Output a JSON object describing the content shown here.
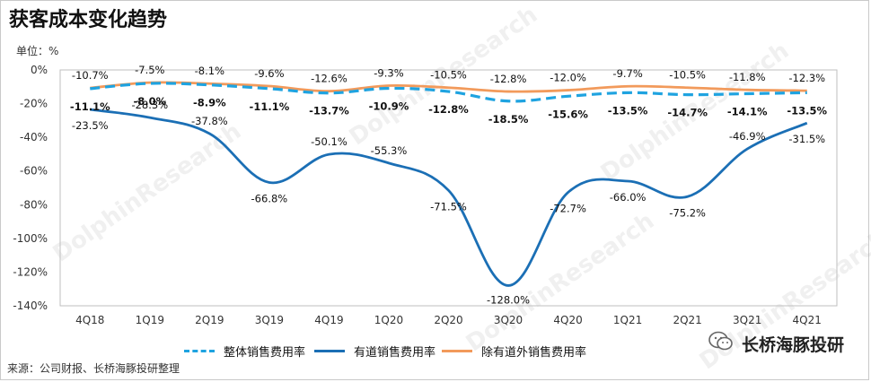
{
  "page": {
    "title": "获客成本变化趋势",
    "unit": "单位：%",
    "source": "来源：公司财报、长桥海豚投研整理",
    "brand": "长桥海豚投研",
    "watermark": "DolphinResearch"
  },
  "chart_data": {
    "type": "line",
    "title": "获客成本变化趋势",
    "xlabel": "",
    "ylabel": "单位：%",
    "categories": [
      "4Q18",
      "1Q19",
      "2Q19",
      "3Q19",
      "4Q19",
      "1Q20",
      "2Q20",
      "3Q20",
      "4Q20",
      "1Q21",
      "2Q21",
      "3Q21",
      "4Q21"
    ],
    "ylim": [
      -140,
      0
    ],
    "yticks": [
      0,
      -20,
      -40,
      -60,
      -80,
      -100,
      -120,
      -140
    ],
    "ytick_labels": [
      "0%",
      "-20%",
      "-40%",
      "-60%",
      "-80%",
      "-100%",
      "-120%",
      "-140%"
    ],
    "grid": false,
    "legend_position": "bottom",
    "series": [
      {
        "name": "整体销售费用率",
        "style": "dashed",
        "color": "#1fa3e0",
        "values": [
          -11.1,
          -8.0,
          -8.9,
          -11.1,
          -13.7,
          -10.9,
          -12.8,
          -18.5,
          -15.6,
          -13.5,
          -14.7,
          -14.1,
          -13.5
        ],
        "labels": [
          "-11.1%",
          "-8.0%",
          "-8.9%",
          "-11.1%",
          "-13.7%",
          "-10.9%",
          "-12.8%",
          "-18.5%",
          "-15.6%",
          "-13.5%",
          "-14.7%",
          "-14.1%",
          "-13.5%"
        ]
      },
      {
        "name": "有道销售费用率",
        "style": "solid",
        "color": "#1b6fb5",
        "values": [
          -23.5,
          -28.3,
          -37.8,
          -66.8,
          -50.1,
          -55.3,
          -71.5,
          -128.0,
          -72.7,
          -66.0,
          -75.2,
          -46.9,
          -31.5
        ],
        "labels": [
          "-23.5%",
          "-28.3%",
          "-37.8%",
          "-66.8%",
          "-50.1%",
          "-55.3%",
          "-71.5%",
          "-128.0%",
          "-72.7%",
          "-66.0%",
          "-75.2%",
          "-46.9%",
          "-31.5%"
        ]
      },
      {
        "name": "除有道外销售费用率",
        "style": "solid",
        "color": "#f29a5b",
        "values": [
          -10.7,
          -7.5,
          -8.1,
          -9.6,
          -12.6,
          -9.3,
          -10.5,
          -12.8,
          -12.0,
          -9.7,
          -10.5,
          -11.8,
          -12.3
        ],
        "labels": [
          "-10.7%",
          "-7.5%",
          "-8.1%",
          "-9.6%",
          "-12.6%",
          "-9.3%",
          "-10.5%",
          "-12.8%",
          "-12.0%",
          "-9.7%",
          "-10.5%",
          "-11.8%",
          "-12.3%"
        ]
      }
    ]
  }
}
